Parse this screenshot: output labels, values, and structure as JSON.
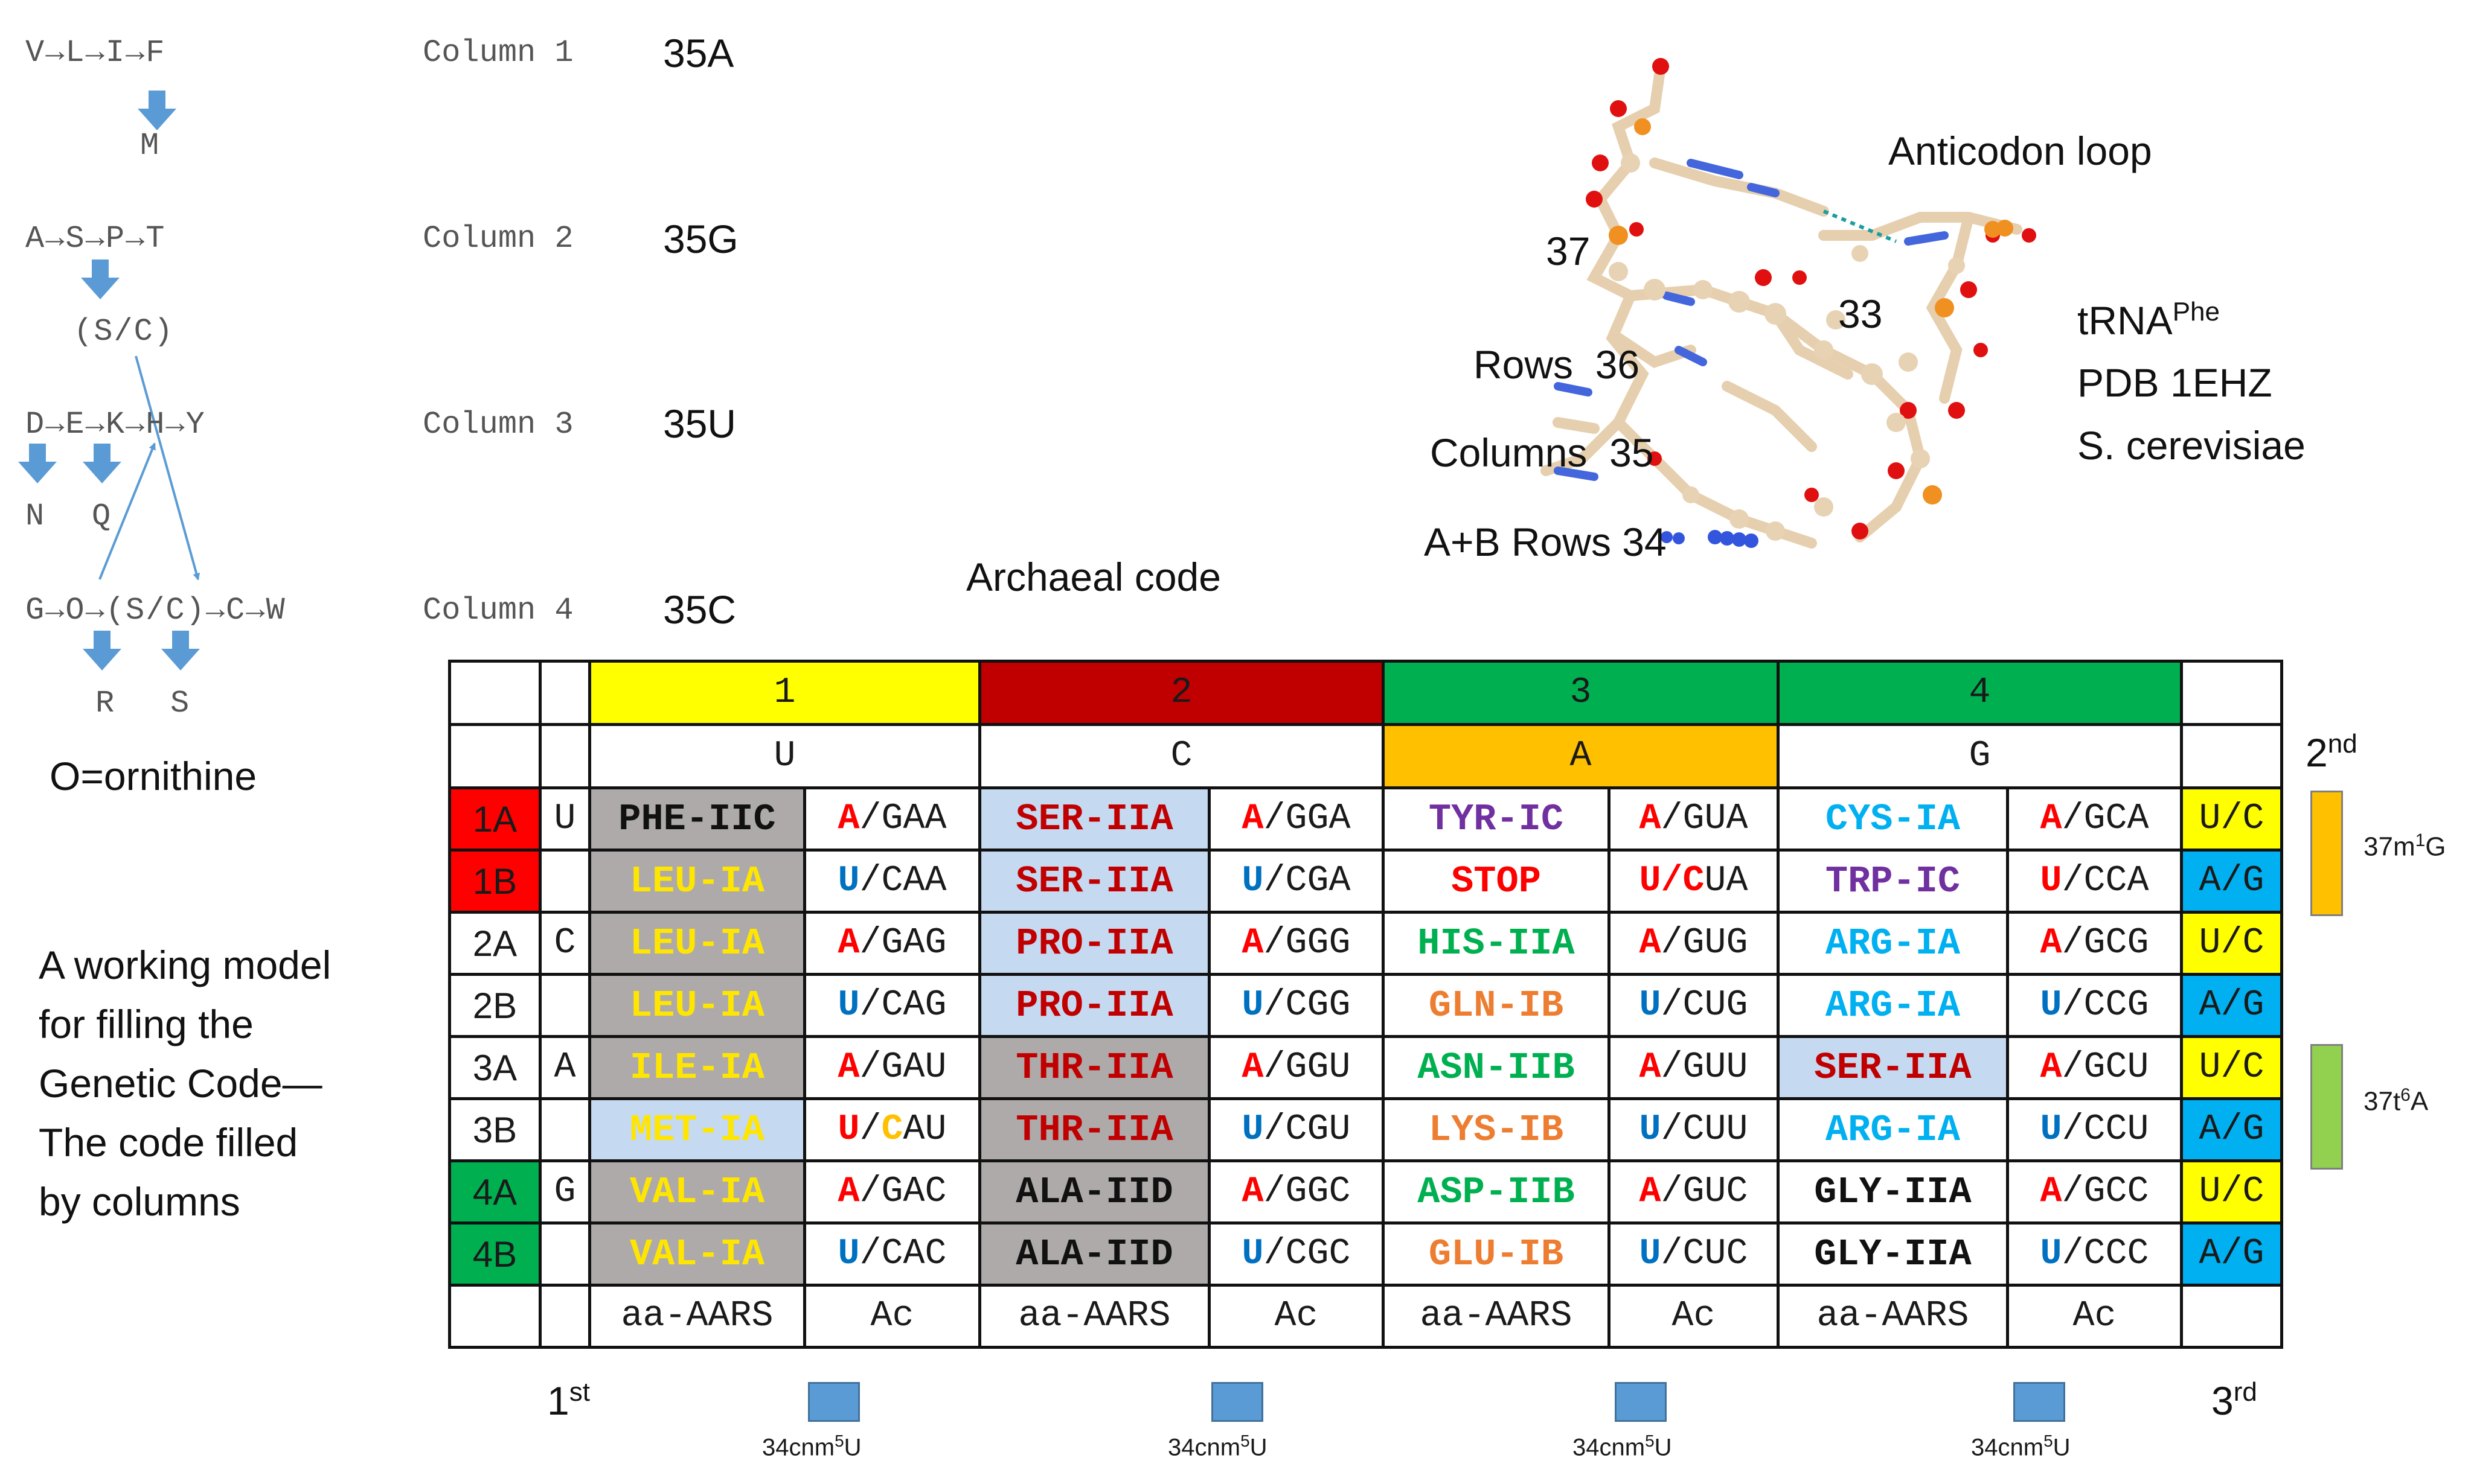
{
  "pathways": {
    "rows": [
      {
        "sequence": "V→L→I→F",
        "below": "M",
        "column": "Column 1",
        "anticodon": "35A"
      },
      {
        "sequence": "A→S→P→T",
        "below": "(S/C)",
        "column": "Column 2",
        "anticodon": "35G"
      },
      {
        "sequence": "D→E→K→H→Y",
        "below_left": "N",
        "below_right": "Q",
        "column": "Column 3",
        "anticodon": "35U"
      },
      {
        "sequence": "G→O→(S/C)→C→W",
        "below_left": "R",
        "below_right": "S",
        "column": "Column 4",
        "anticodon": "35C"
      }
    ],
    "ornithine_note": "O=ornithine"
  },
  "model_text": [
    "A working model",
    "for filling the",
    "Genetic Code—",
    "The code filled",
    "by columns"
  ],
  "archaeal_title": "Archaeal code",
  "structure": {
    "title": "Anticodon loop",
    "labels": {
      "n37": "37",
      "n33": "33",
      "rows36": "Rows  36",
      "cols35": "Columns  35",
      "ab34": "A+B Rows 34"
    },
    "trna": "tRNA",
    "trna_sup": "Phe",
    "pdb": "PDB 1EHZ",
    "organism": "S. cerevisiae"
  },
  "colors": {
    "col1": "#ffff00",
    "col2": "#c00000",
    "col3": "#00b050",
    "col4": "#00b050",
    "rowA": "#ff0000",
    "rowG": "#00b050",
    "gray": "#aeaaaa",
    "lightblue": "#c5d9f1",
    "orange": "#ffc000",
    "blue": "#00b0f0",
    "red_aa": "#c00000",
    "yellow_aa": "#ffe600",
    "purple": "#7030a0",
    "cyan": "#00b0f0",
    "green": "#00b050",
    "orange_aa": "#ed7d31",
    "ac_red": "#ff0000",
    "ac_blue": "#0070c0"
  },
  "table": {
    "col_headers": [
      "1",
      "2",
      "3",
      "4"
    ],
    "bases": [
      "U",
      "C",
      "A",
      "G"
    ],
    "rows": [
      {
        "label": "1A",
        "first": "U",
        "third": "U/C",
        "cells": [
          {
            "aa": "PHE-IIC",
            "ac_first": "A",
            "ac_rest": "/GAA"
          },
          {
            "aa": "SER-IIA",
            "ac_first": "A",
            "ac_rest": "/GGA"
          },
          {
            "aa": "TYR-IC",
            "ac_first": "A",
            "ac_rest": "/GUA"
          },
          {
            "aa": "CYS-IA",
            "ac_first": "A",
            "ac_rest": "/GCA"
          }
        ]
      },
      {
        "label": "1B",
        "first": "",
        "third": "A/G",
        "cells": [
          {
            "aa": "LEU-IA",
            "ac_first": "U",
            "ac_rest": "/CAA"
          },
          {
            "aa": "SER-IIA",
            "ac_first": "U",
            "ac_rest": "/CGA"
          },
          {
            "aa": "STOP",
            "ac_first": "U/C",
            "ac_rest": "UA"
          },
          {
            "aa": "TRP-IC",
            "ac_first": "U",
            "ac_rest": "/CCA"
          }
        ]
      },
      {
        "label": "2A",
        "first": "C",
        "third": "U/C",
        "cells": [
          {
            "aa": "LEU-IA",
            "ac_first": "A",
            "ac_rest": "/GAG"
          },
          {
            "aa": "PRO-IIA",
            "ac_first": "A",
            "ac_rest": "/GGG"
          },
          {
            "aa": "HIS-IIA",
            "ac_first": "A",
            "ac_rest": "/GUG"
          },
          {
            "aa": "ARG-IA",
            "ac_first": "A",
            "ac_rest": "/GCG"
          }
        ]
      },
      {
        "label": "2B",
        "first": "",
        "third": "A/G",
        "cells": [
          {
            "aa": "LEU-IA",
            "ac_first": "U",
            "ac_rest": "/CAG"
          },
          {
            "aa": "PRO-IIA",
            "ac_first": "U",
            "ac_rest": "/CGG"
          },
          {
            "aa": "GLN-IB",
            "ac_first": "U",
            "ac_rest": "/CUG"
          },
          {
            "aa": "ARG-IA",
            "ac_first": "U",
            "ac_rest": "/CCG"
          }
        ]
      },
      {
        "label": "3A",
        "first": "A",
        "third": "U/C",
        "cells": [
          {
            "aa": "ILE-IA",
            "ac_first": "A",
            "ac_rest": "/GAU"
          },
          {
            "aa": "THR-IIA",
            "ac_first": "A",
            "ac_rest": "/GGU"
          },
          {
            "aa": "ASN-IIB",
            "ac_first": "A",
            "ac_rest": "/GUU"
          },
          {
            "aa": "SER-IIA",
            "ac_first": "A",
            "ac_rest": "/GCU"
          }
        ]
      },
      {
        "label": "3B",
        "first": "",
        "third": "A/G",
        "cells": [
          {
            "aa": "MET-IA",
            "ac_first": "U",
            "ac_slash": "/",
            "ac_mid": "C",
            "ac_rest": "AU"
          },
          {
            "aa": "THR-IIA",
            "ac_first": "U",
            "ac_rest": "/CGU"
          },
          {
            "aa": "LYS-IB",
            "ac_first": "U",
            "ac_rest": "/CUU"
          },
          {
            "aa": "ARG-IA",
            "ac_first": "U",
            "ac_rest": "/CCU"
          }
        ]
      },
      {
        "label": "4A",
        "first": "G",
        "third": "U/C",
        "cells": [
          {
            "aa": "VAL-IA",
            "ac_first": "A",
            "ac_rest": "/GAC"
          },
          {
            "aa": "ALA-IID",
            "ac_first": "A",
            "ac_rest": "/GGC"
          },
          {
            "aa": "ASP-IIB",
            "ac_first": "A",
            "ac_rest": "/GUC"
          },
          {
            "aa": "GLY-IIA",
            "ac_first": "A",
            "ac_rest": "/GCC"
          }
        ]
      },
      {
        "label": "4B",
        "first": "",
        "third": "A/G",
        "cells": [
          {
            "aa": "VAL-IA",
            "ac_first": "U",
            "ac_rest": "/CAC"
          },
          {
            "aa": "ALA-IID",
            "ac_first": "U",
            "ac_rest": "/CGC"
          },
          {
            "aa": "GLU-IB",
            "ac_first": "U",
            "ac_rest": "/CUC"
          },
          {
            "aa": "GLY-IIA",
            "ac_first": "U",
            "ac_rest": "/CCC"
          }
        ]
      }
    ],
    "footer": [
      "aa-AARS",
      "Ac",
      "aa-AARS",
      "Ac",
      "aa-AARS",
      "Ac",
      "aa-AARS",
      "Ac"
    ]
  },
  "side": {
    "second": "2",
    "second_sup": "nd",
    "first": "1",
    "first_sup": "st",
    "third": "3",
    "third_sup": "rd",
    "mod1": "37m",
    "mod1_sup": "1",
    "mod1_tail": "G",
    "mod2": "37t",
    "mod2_sup": "6",
    "mod2_tail": "A",
    "cnm_pre": "34cnm",
    "cnm_sup": "5",
    "cnm_tail": "U"
  }
}
